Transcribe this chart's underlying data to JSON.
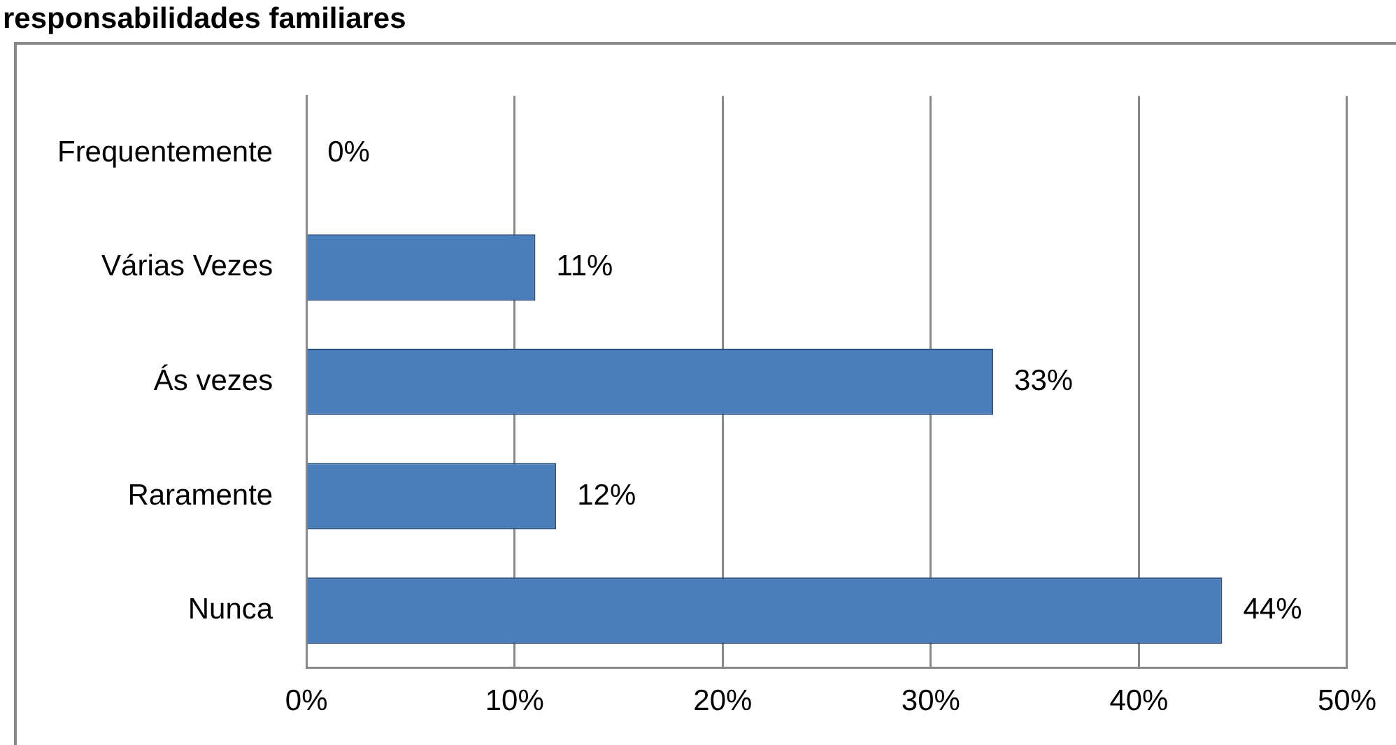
{
  "chart_data": {
    "type": "bar",
    "orientation": "horizontal",
    "title": "responsabilidades familiares",
    "categories": [
      "Frequentemente",
      "Várias Vezes",
      "Ás vezes",
      "Raramente",
      "Nunca"
    ],
    "values": [
      0,
      11,
      33,
      12,
      44
    ],
    "value_labels": [
      "0%",
      "11%",
      "33%",
      "12%",
      "44%"
    ],
    "color": "#4a7ebb",
    "xlim": [
      0,
      50
    ],
    "xticks": [
      {
        "value": 0,
        "label": "0%"
      },
      {
        "value": 10,
        "label": "10%"
      },
      {
        "value": 20,
        "label": "20%"
      },
      {
        "value": 30,
        "label": "30%"
      },
      {
        "value": 40,
        "label": "40%"
      },
      {
        "value": 50,
        "label": "50%"
      }
    ],
    "grid": "x",
    "legend": false
  }
}
